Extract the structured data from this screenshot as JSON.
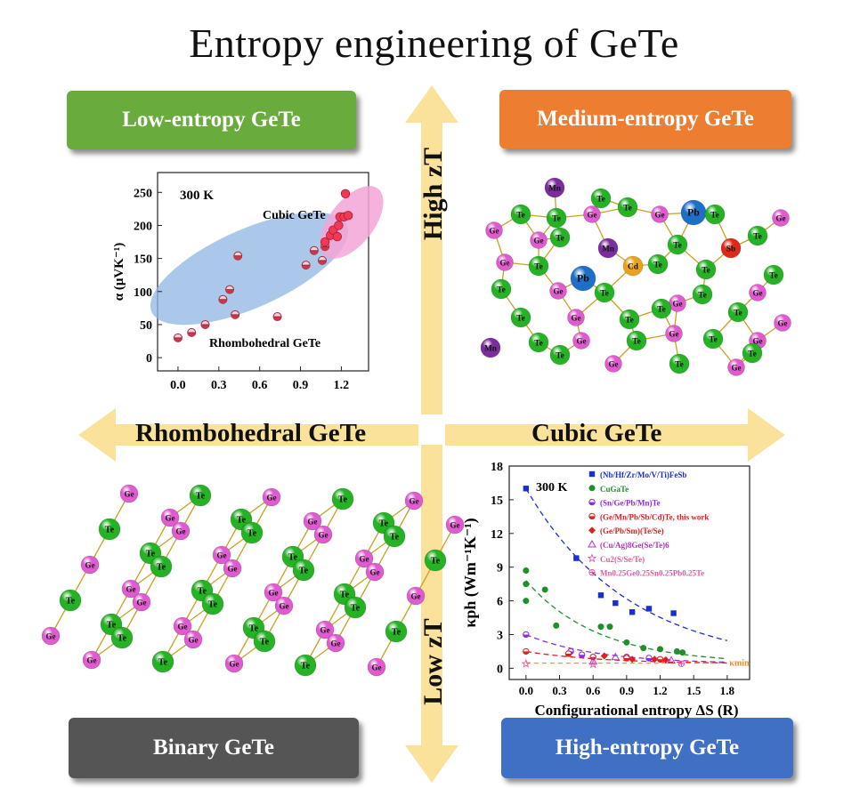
{
  "title": "Entropy engineering of GeTe",
  "boxes": {
    "low": "Low-entropy GeTe",
    "medium": "Medium-entropy GeTe",
    "binary": "Binary GeTe",
    "high": "High-entropy GeTe"
  },
  "axes": {
    "left": "Rhombohedral GeTe",
    "right": "Cubic GeTe",
    "up": "High zT",
    "down": "Low zT"
  },
  "colors": {
    "low_box": "#6aab3e",
    "medium_box": "#ed7d31",
    "binary_box": "#555555",
    "high_box": "#3f70c4",
    "arrow": "#fbe29a",
    "ge": "#e05ad0",
    "te": "#25b225",
    "mn": "#7b2c9e",
    "pb": "#1d6fc8",
    "cd": "#e9a21a",
    "sb": "#dc2a18"
  },
  "atoms": {
    "ge": "Ge",
    "te": "Te",
    "mn": "Mn",
    "pb": "Pb",
    "cd": "Cd",
    "sb": "Sb"
  },
  "chart_data": [
    {
      "type": "scatter",
      "temperature": "300 K",
      "ylabel": "α (μVK⁻¹)",
      "xlabel": "",
      "xlim": [
        -0.15,
        1.4
      ],
      "ylim": [
        -20,
        280
      ],
      "xticks": [
        "0.0",
        "0.3",
        "0.6",
        "0.9",
        "1.2"
      ],
      "xtick_values": [
        0,
        0.3,
        0.6,
        0.9,
        1.2
      ],
      "yticks": [
        "0",
        "50",
        "100",
        "150",
        "200",
        "250"
      ],
      "ytick_values": [
        0,
        50,
        100,
        150,
        200,
        250
      ],
      "annotations": [
        "Cubic GeTe",
        "Rhombohedral GeTe"
      ],
      "rhombohedral_points": [
        [
          0.0,
          30
        ],
        [
          0.1,
          38
        ],
        [
          0.2,
          50
        ],
        [
          0.33,
          88
        ],
        [
          0.38,
          103
        ],
        [
          0.42,
          65
        ],
        [
          0.44,
          154
        ],
        [
          0.73,
          62
        ],
        [
          0.94,
          140
        ],
        [
          1.0,
          162
        ],
        [
          1.06,
          147
        ],
        [
          1.08,
          168
        ]
      ],
      "cubic_points": [
        [
          1.08,
          175
        ],
        [
          1.12,
          185
        ],
        [
          1.14,
          193
        ],
        [
          1.17,
          183
        ],
        [
          1.18,
          200
        ],
        [
          1.19,
          213
        ],
        [
          1.22,
          213
        ],
        [
          1.23,
          248
        ],
        [
          1.25,
          215
        ]
      ]
    },
    {
      "type": "scatter",
      "temperature": "300 K",
      "ylabel": "κph (Wm⁻¹K⁻¹)",
      "xlabel": "Configurational entropy ΔS (R)",
      "xlim": [
        -0.15,
        2.0
      ],
      "ylim": [
        -1,
        18
      ],
      "xticks": [
        "0.0",
        "0.3",
        "0.6",
        "0.9",
        "1.2",
        "1.5",
        "1.8"
      ],
      "xtick_values": [
        0,
        0.3,
        0.6,
        0.9,
        1.2,
        1.5,
        1.8
      ],
      "yticks": [
        "0",
        "3",
        "6",
        "9",
        "12",
        "15",
        "18"
      ],
      "ytick_values": [
        0,
        3,
        6,
        9,
        12,
        15,
        18
      ],
      "kmin_label": "κmin",
      "kmin_value": 0.45,
      "series": [
        {
          "name": "(Nb/Hf/Zr/Mo/V/Ti)FeSb",
          "color": "#1a2fd0",
          "marker": "square",
          "points": [
            [
              0.0,
              16.0
            ],
            [
              0.45,
              9.8
            ],
            [
              0.67,
              6.5
            ],
            [
              0.8,
              5.8
            ],
            [
              0.95,
              5.0
            ],
            [
              1.1,
              5.3
            ],
            [
              1.32,
              4.9
            ]
          ]
        },
        {
          "name": "CuGaTe",
          "color": "#1f8f2a",
          "marker": "circle",
          "points": [
            [
              0.0,
              8.7
            ],
            [
              0.0,
              7.5
            ],
            [
              0.0,
              6.0
            ],
            [
              0.17,
              7.0
            ],
            [
              0.27,
              3.8
            ],
            [
              0.67,
              3.7
            ],
            [
              0.75,
              3.7
            ],
            [
              0.9,
              2.3
            ],
            [
              1.05,
              1.8
            ],
            [
              1.2,
              1.7
            ],
            [
              1.35,
              1.5
            ],
            [
              1.4,
              1.4
            ]
          ]
        },
        {
          "name": "(Sn/Ge/Pb/Mn)Te",
          "color": "#8a2be2",
          "marker": "halfcircle",
          "points": [
            [
              0.0,
              3.0
            ],
            [
              0.4,
              1.5
            ],
            [
              0.5,
              1.2
            ],
            [
              0.9,
              1.0
            ],
            [
              1.1,
              0.9
            ]
          ]
        },
        {
          "name": "(Ge/Mn/Pb/Sb/Cd)Te, this work",
          "color": "#e02020",
          "marker": "halfcircle",
          "points": [
            [
              0.0,
              1.5
            ],
            [
              0.38,
              1.3
            ],
            [
              0.6,
              1.0
            ],
            [
              0.9,
              0.9
            ],
            [
              1.2,
              0.8
            ]
          ]
        },
        {
          "name": "(Ge/Pb/Sm)(Te/Se)",
          "color": "#e02020",
          "marker": "diamond",
          "points": [
            [
              0.7,
              1.1
            ],
            [
              0.95,
              0.8
            ],
            [
              1.15,
              0.8
            ],
            [
              1.25,
              0.75
            ]
          ]
        },
        {
          "name": "(Cu/Ag)8Ge(Se/Te)6",
          "color": "#c02fbf",
          "marker": "triangle",
          "points": [
            [
              0.6,
              0.6
            ],
            [
              0.8,
              1.0
            ],
            [
              1.3,
              0.7
            ]
          ]
        },
        {
          "name": "Cu2(S/Se/Te)",
          "color": "#e45aa0",
          "marker": "star",
          "points": [
            [
              0.0,
              0.4
            ],
            [
              0.6,
              0.35
            ]
          ]
        },
        {
          "name": "Mn0.25Ge0.25Sn0.25Pb0.25Te",
          "color": "#e45aa0",
          "marker": "circleplus",
          "points": [
            [
              1.39,
              0.4
            ]
          ]
        }
      ]
    }
  ]
}
